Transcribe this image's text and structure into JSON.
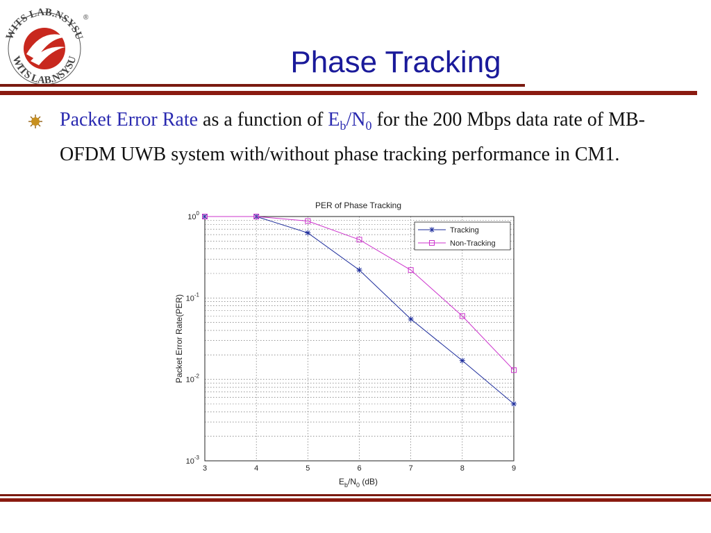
{
  "slide": {
    "title": "Phase Tracking",
    "bullet": {
      "highlight": "Packet Error Rate",
      "text1": " as a function of ",
      "eb": "E",
      "eb_sub": "b",
      "slash_n": "/N",
      "n_sub": "0",
      "text2": " for the 200 Mbps data rate of MB-OFDM UWB system with/without phase tracking performance in CM1."
    }
  },
  "logo": {
    "top_text": "WITS LAB.NSYSU",
    "bottom_text": "WITS LAB.NSYSU",
    "registered": "®"
  },
  "colors": {
    "title": "#1a1a9a",
    "rule": "#8a1a10",
    "tracking": "#1a2a9a",
    "non_tracking": "#cc33cc"
  },
  "chart_data": {
    "type": "line",
    "title": "PER of Phase Tracking",
    "xlabel": {
      "main": "E",
      "sub1": "b",
      "mid": "/N",
      "sub2": "0",
      "tail": " (dB)"
    },
    "ylabel": "Packet Error Rate(PER)",
    "x": [
      3,
      4,
      5,
      6,
      7,
      8,
      9
    ],
    "xlim": [
      3,
      9
    ],
    "ylim": [
      0.001,
      1
    ],
    "yscale": "log",
    "grid": true,
    "legend_position": "top-right",
    "yticks": [
      {
        "base": "10",
        "exp": "0",
        "value": 1
      },
      {
        "base": "10",
        "exp": "-1",
        "value": 0.1
      },
      {
        "base": "10",
        "exp": "-2",
        "value": 0.01
      },
      {
        "base": "10",
        "exp": "-3",
        "value": 0.001
      }
    ],
    "xticks": [
      "3",
      "4",
      "5",
      "6",
      "7",
      "8",
      "9"
    ],
    "series": [
      {
        "name": "Tracking",
        "marker": "star",
        "color": "#1a2a9a",
        "values": [
          1.0,
          1.0,
          0.63,
          0.22,
          0.055,
          0.017,
          0.005
        ]
      },
      {
        "name": "Non-Tracking",
        "marker": "square",
        "color": "#cc33cc",
        "values": [
          1.0,
          1.0,
          0.88,
          0.52,
          0.22,
          0.06,
          0.013
        ]
      }
    ]
  }
}
